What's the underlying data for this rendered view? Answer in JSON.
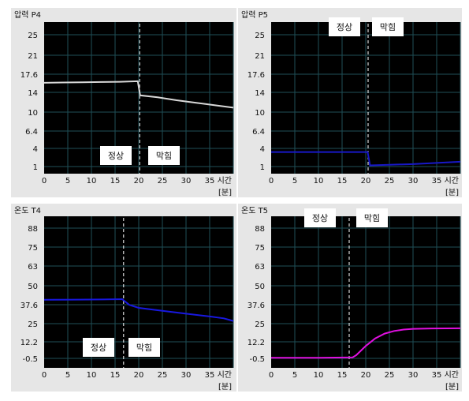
{
  "chart_data": [
    {
      "type": "line",
      "title": "압력 P4",
      "xlabel": "[분]",
      "x_unit_label": "시간",
      "xlim": [
        0,
        40
      ],
      "x_ticks": [
        "0",
        "5",
        "10",
        "15",
        "20",
        "25",
        "30",
        "35"
      ],
      "y_ticks": [
        "25",
        "21",
        "17.6",
        "14",
        "10",
        "6.4",
        "4",
        "1"
      ],
      "grid": true,
      "annotations": [
        "정상",
        "막힘"
      ],
      "event_x": 20.2,
      "series": [
        {
          "color": "#d8d8d8",
          "points": [
            [
              0,
              15.9
            ],
            [
              4,
              15.95
            ],
            [
              8,
              16.0
            ],
            [
              12,
              16.05
            ],
            [
              16,
              16.1
            ],
            [
              19.8,
              16.2
            ],
            [
              20.3,
              13.4
            ],
            [
              24,
              13.0
            ],
            [
              28,
              12.4
            ],
            [
              32,
              11.9
            ],
            [
              36,
              11.4
            ],
            [
              40,
              10.9
            ]
          ]
        }
      ]
    },
    {
      "type": "line",
      "title": "압력 P5",
      "xlabel": "[분]",
      "x_unit_label": "시간",
      "xlim": [
        0,
        40
      ],
      "x_ticks": [
        "0",
        "5",
        "10",
        "15",
        "20",
        "25",
        "30",
        "35"
      ],
      "y_ticks": [
        "25",
        "21",
        "17.6",
        "14",
        "10",
        "6.4",
        "4",
        "1"
      ],
      "grid": true,
      "annotations": [
        "정상",
        "막힘"
      ],
      "event_x": 20.5,
      "series": [
        {
          "color": "#1818c8",
          "points": [
            [
              0,
              3.4
            ],
            [
              10,
              3.4
            ],
            [
              20.4,
              3.4
            ],
            [
              20.9,
              1.2
            ],
            [
              25,
              1.3
            ],
            [
              30,
              1.4
            ],
            [
              35,
              1.6
            ],
            [
              40,
              1.8
            ]
          ]
        }
      ]
    },
    {
      "type": "line",
      "title": "온도 T4",
      "xlabel": "[분]",
      "x_unit_label": "시간",
      "xlim": [
        0,
        40
      ],
      "x_ticks": [
        "0",
        "5",
        "10",
        "15",
        "20",
        "25",
        "30",
        "35"
      ],
      "y_ticks": [
        "88",
        "75",
        "63",
        "50",
        "37.6",
        "25",
        "12.2",
        "-0.5"
      ],
      "grid": true,
      "annotations": [
        "정상",
        "막힘"
      ],
      "event_x": 16.8,
      "series": [
        {
          "color": "#1818e0",
          "points": [
            [
              0,
              40.8
            ],
            [
              6,
              40.9
            ],
            [
              12,
              41.0
            ],
            [
              16.5,
              41.2
            ],
            [
              18,
              37.5
            ],
            [
              20,
              35.5
            ],
            [
              25,
              33.5
            ],
            [
              30,
              31.6
            ],
            [
              35,
              29.8
            ],
            [
              38,
              28.5
            ],
            [
              40,
              26.8
            ]
          ]
        }
      ]
    },
    {
      "type": "line",
      "title": "온도 T5",
      "xlabel": "[분]",
      "x_unit_label": "시간",
      "xlim": [
        0,
        40
      ],
      "x_ticks": [
        "0",
        "5",
        "10",
        "15",
        "20",
        "25",
        "30",
        "35"
      ],
      "y_ticks": [
        "88",
        "75",
        "63",
        "50",
        "37.6",
        "25",
        "12.2",
        "-0.5"
      ],
      "grid": true,
      "annotations": [
        "정상",
        "막힘"
      ],
      "event_x": 16.5,
      "series": [
        {
          "color": "#e010e0",
          "points": [
            [
              0,
              0.0
            ],
            [
              10,
              0.0
            ],
            [
              17.2,
              0.2
            ],
            [
              18,
              2.0
            ],
            [
              20,
              9.0
            ],
            [
              22,
              14.6
            ],
            [
              24,
              18.0
            ],
            [
              26,
              19.8
            ],
            [
              28,
              20.8
            ],
            [
              30,
              21.3
            ],
            [
              34,
              21.6
            ],
            [
              40,
              21.7
            ]
          ]
        }
      ]
    }
  ]
}
